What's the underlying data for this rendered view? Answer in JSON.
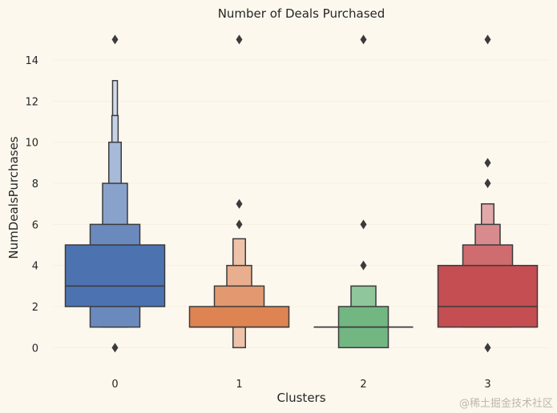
{
  "chart_data": {
    "type": "boxen",
    "title": "Number of Deals Purchased",
    "xlabel": "Clusters",
    "ylabel": "NumDealsPurchases",
    "categories": [
      "0",
      "1",
      "2",
      "3"
    ],
    "ylim": [
      -1,
      15.6
    ],
    "yticks": [
      0,
      2,
      4,
      6,
      8,
      10,
      12,
      14
    ],
    "grid": true,
    "colors": {
      "background": "#fdf8ee",
      "grid": "#f6efe2",
      "edge": "#3b3b3b",
      "series": [
        "#4c72b0",
        "#dd8452",
        "#55a868",
        "#c44e52"
      ]
    },
    "series": [
      {
        "category": "0",
        "median": 3,
        "boxes": [
          {
            "lo": 2,
            "hi": 5
          },
          {
            "lo": 1,
            "hi": 6
          },
          {
            "lo": 1,
            "hi": 8
          },
          {
            "lo": 1,
            "hi": 10
          },
          {
            "lo": 1,
            "hi": 11.3
          },
          {
            "lo": 1,
            "hi": 13
          }
        ],
        "outliers": [
          15,
          0
        ]
      },
      {
        "category": "1",
        "median": 1,
        "boxes": [
          {
            "lo": 1,
            "hi": 2
          },
          {
            "lo": 1,
            "hi": 3
          },
          {
            "lo": 1,
            "hi": 4
          },
          {
            "lo": 0,
            "hi": 5.3
          }
        ],
        "outliers": [
          15,
          7,
          6
        ]
      },
      {
        "category": "2",
        "median": 1,
        "boxes": [
          {
            "lo": 1,
            "hi": 1
          },
          {
            "lo": 0,
            "hi": 2
          },
          {
            "lo": 1,
            "hi": 3
          }
        ],
        "outliers": [
          15,
          6,
          4
        ]
      },
      {
        "category": "3",
        "median": 2,
        "boxes": [
          {
            "lo": 1,
            "hi": 4
          },
          {
            "lo": 1,
            "hi": 5
          },
          {
            "lo": 1,
            "hi": 6
          },
          {
            "lo": 1,
            "hi": 7
          }
        ],
        "outliers": [
          15,
          9,
          8,
          0
        ]
      }
    ]
  },
  "watermark": "@稀土掘金技术社区"
}
